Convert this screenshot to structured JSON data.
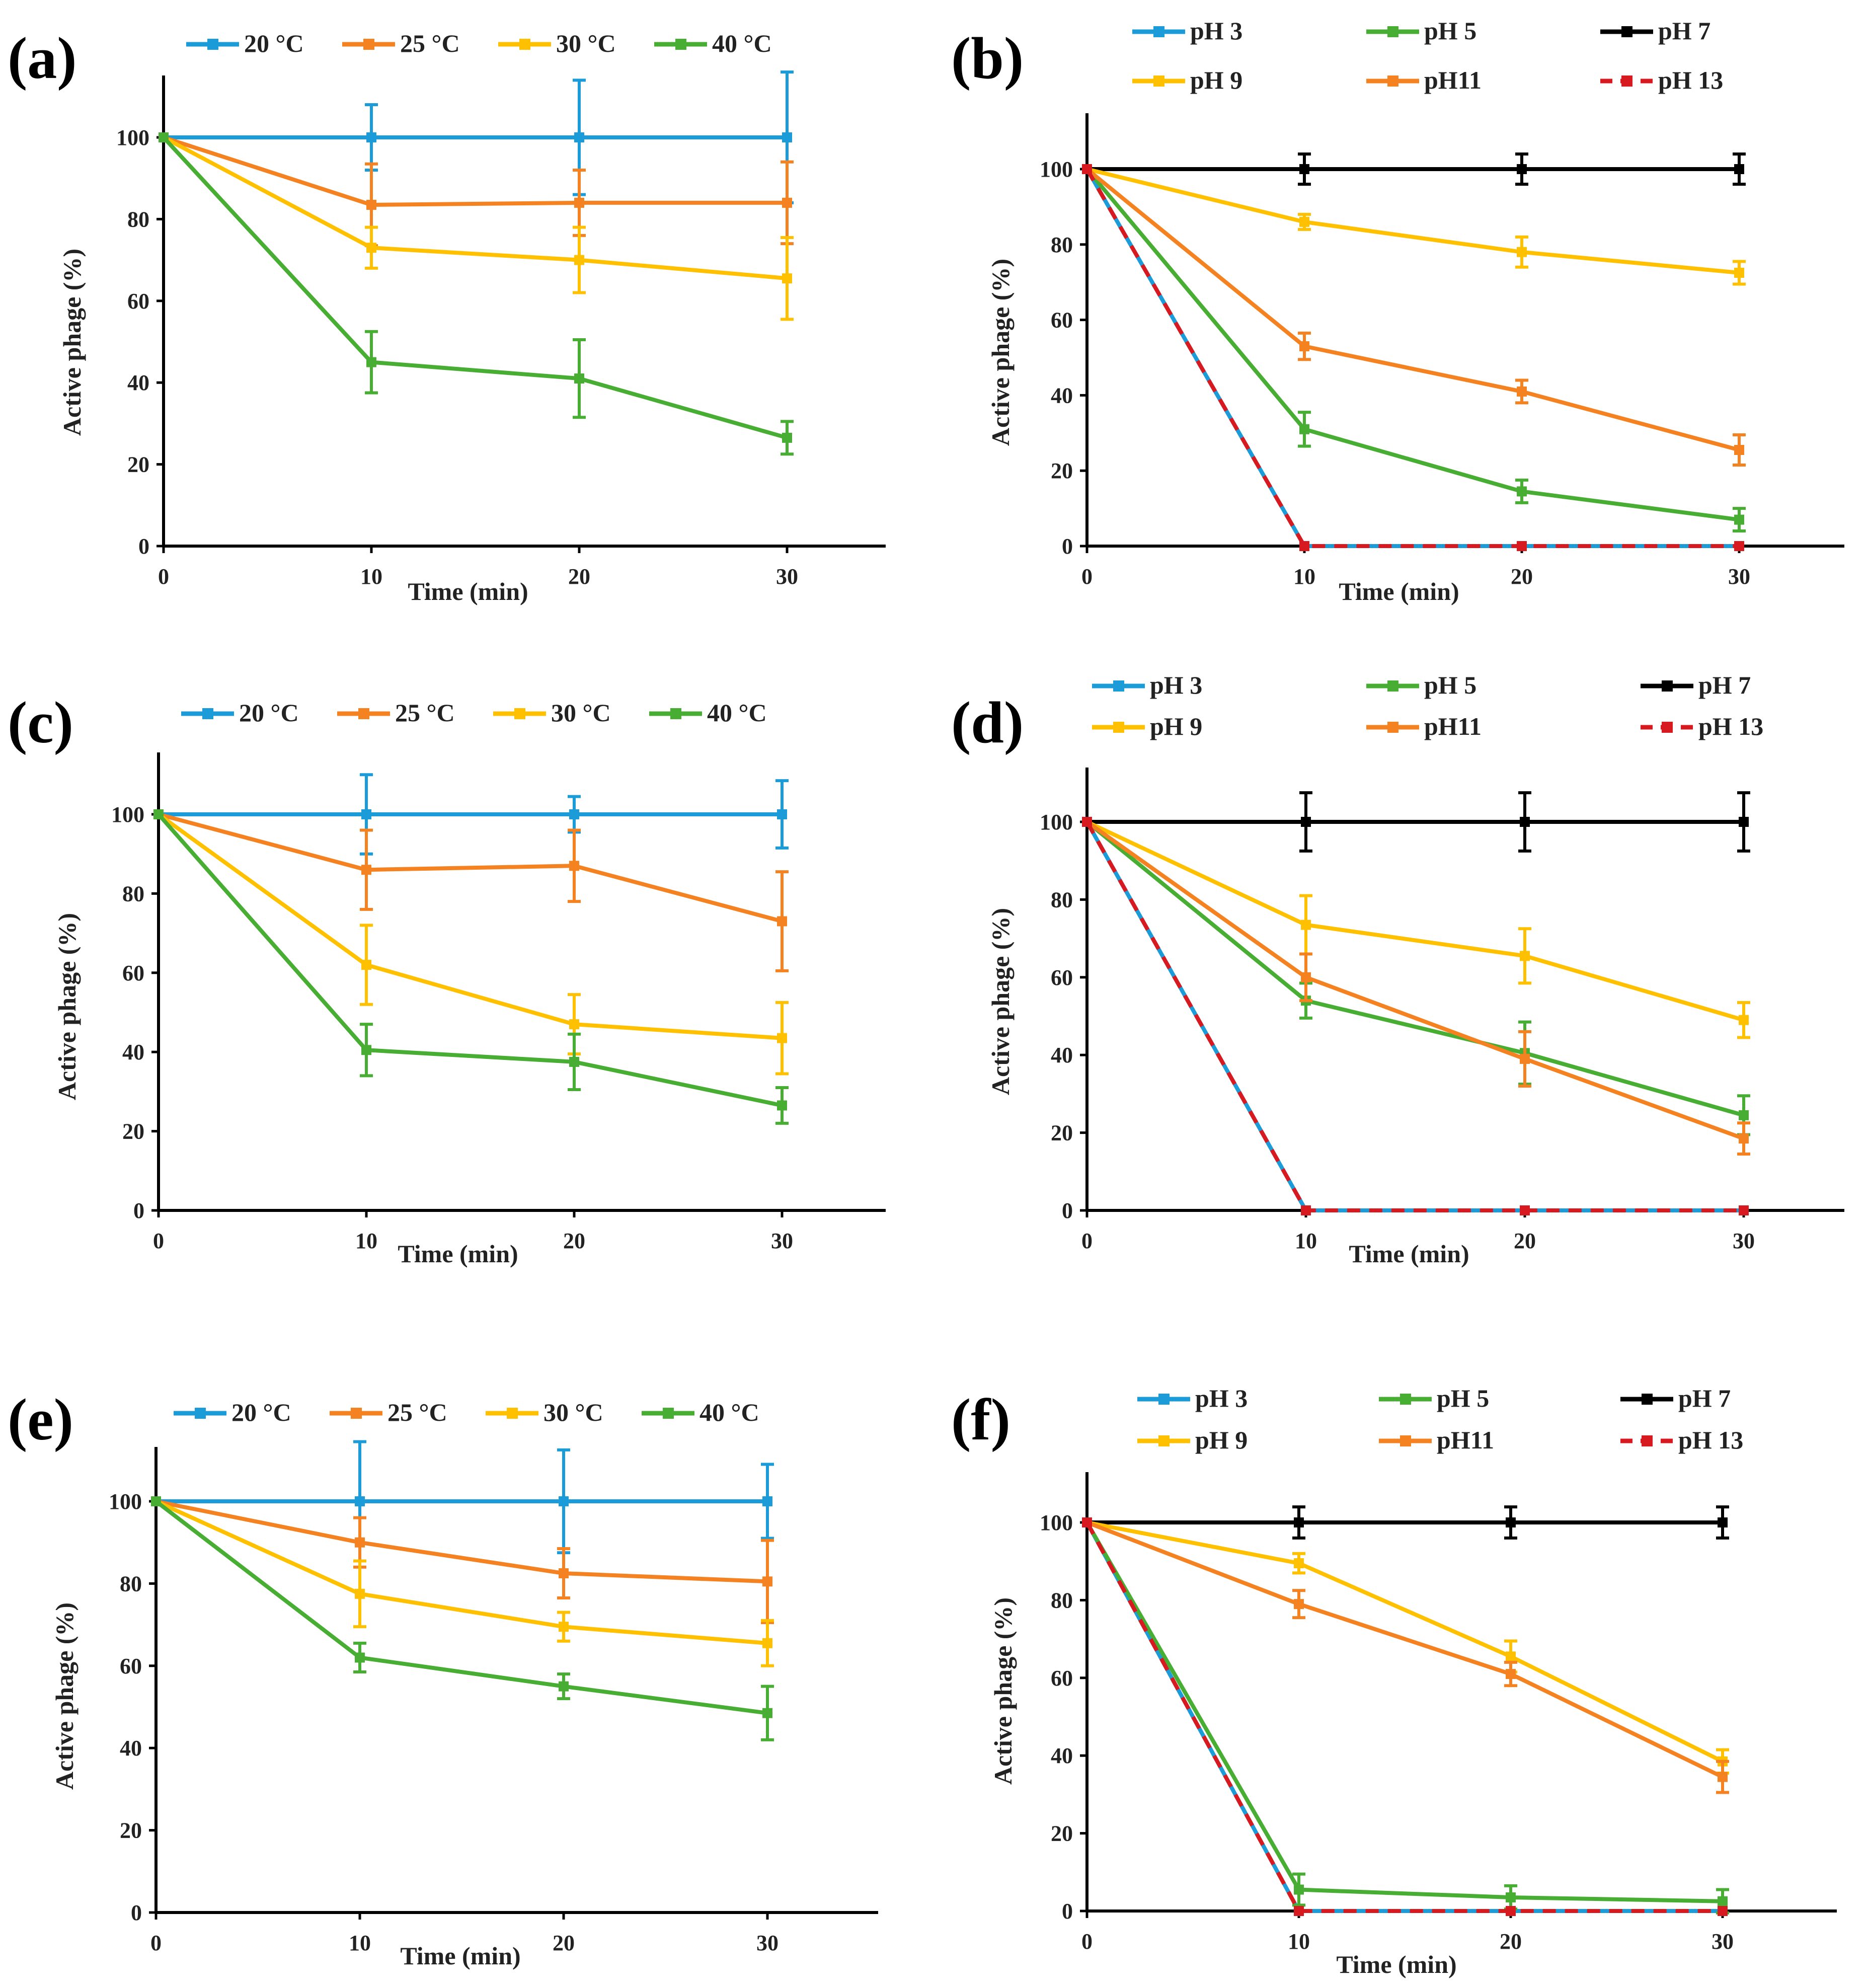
{
  "colors": {
    "blue": "#1B9BD8",
    "orange": "#F58220",
    "yellow": "#FFC000",
    "green": "#48AE33",
    "black": "#000000",
    "red": "#D71920"
  },
  "chart_data": [
    {
      "panel": "(a)",
      "type": "line",
      "x": [
        0,
        10,
        20,
        30
      ],
      "xticks": [
        "0",
        "10",
        "20",
        "30"
      ],
      "yticks": [
        "0",
        "20",
        "40",
        "60",
        "80",
        "100"
      ],
      "xlabel": "Time (min)",
      "ylabel": "Active phage (%)",
      "xlim": [
        0,
        35
      ],
      "ylim": [
        0,
        110
      ],
      "series": [
        {
          "name": "20 °C",
          "color": "blue",
          "values": [
            100,
            100,
            100,
            100
          ],
          "errors": [
            0,
            8,
            14,
            16
          ]
        },
        {
          "name": "25 °C",
          "color": "orange",
          "values": [
            100,
            83.5,
            84,
            84
          ],
          "errors": [
            0,
            10,
            8,
            10
          ]
        },
        {
          "name": "30 °C",
          "color": "yellow",
          "values": [
            100,
            73,
            70,
            65.5
          ],
          "errors": [
            0,
            5,
            8,
            10
          ]
        },
        {
          "name": "40 °C",
          "color": "green",
          "values": [
            100,
            45,
            41,
            26.5
          ],
          "errors": [
            0,
            7.5,
            9.5,
            4
          ]
        }
      ]
    },
    {
      "panel": "(b)",
      "type": "line",
      "x": [
        0,
        10,
        20,
        30
      ],
      "xticks": [
        "0",
        "10",
        "20",
        "30"
      ],
      "yticks": [
        "0",
        "20",
        "40",
        "60",
        "80",
        "100"
      ],
      "xlabel": "Time (min)",
      "ylabel": "Active phage (%)",
      "xlim": [
        0,
        35
      ],
      "ylim": [
        0,
        115
      ],
      "series": [
        {
          "name": "pH 3",
          "color": "blue",
          "values": [
            100,
            0,
            0,
            0
          ],
          "errors": [
            0,
            0,
            0,
            0
          ]
        },
        {
          "name": "pH 5",
          "color": "green",
          "values": [
            100,
            31,
            14.5,
            7
          ],
          "errors": [
            0,
            4.5,
            3,
            3
          ]
        },
        {
          "name": "pH 7",
          "color": "black",
          "values": [
            100,
            100,
            100,
            100
          ],
          "errors": [
            0,
            4,
            4,
            4
          ]
        },
        {
          "name": "pH 9",
          "color": "yellow",
          "values": [
            100,
            86,
            78,
            72.5
          ],
          "errors": [
            0,
            2,
            4,
            3
          ]
        },
        {
          "name": "pH11",
          "color": "orange",
          "values": [
            100,
            53,
            41,
            25.5
          ],
          "errors": [
            0,
            3.5,
            3,
            4
          ]
        },
        {
          "name": "pH 13",
          "color": "red",
          "values": [
            100,
            0,
            0,
            0
          ],
          "errors": [
            0,
            0,
            0,
            0
          ],
          "dashed": true
        }
      ]
    },
    {
      "panel": "(c)",
      "type": "line",
      "x": [
        0,
        10,
        20,
        30
      ],
      "xticks": [
        "0",
        "10",
        "20",
        "30"
      ],
      "yticks": [
        "0",
        "20",
        "40",
        "60",
        "80",
        "100"
      ],
      "xlabel": "Time (min)",
      "ylabel": "Active phage (%)",
      "xlim": [
        0,
        35
      ],
      "ylim": [
        0,
        113
      ],
      "series": [
        {
          "name": "20 °C",
          "color": "blue",
          "values": [
            100,
            100,
            100,
            100
          ],
          "errors": [
            0,
            10,
            4.5,
            8.5
          ]
        },
        {
          "name": "25 °C",
          "color": "orange",
          "values": [
            100,
            86,
            87,
            73
          ],
          "errors": [
            0,
            10,
            9,
            12.5
          ]
        },
        {
          "name": "30 °C",
          "color": "yellow",
          "values": [
            100,
            62,
            47,
            43.5
          ],
          "errors": [
            0,
            10,
            7.5,
            9
          ]
        },
        {
          "name": "40 °C",
          "color": "green",
          "values": [
            100,
            40.5,
            37.5,
            26.5
          ],
          "errors": [
            0,
            6.5,
            7,
            4.5
          ]
        }
      ]
    },
    {
      "panel": "(d)",
      "type": "line",
      "x": [
        0,
        10,
        20,
        30
      ],
      "xticks": [
        "0",
        "10",
        "20",
        "30"
      ],
      "yticks": [
        "0",
        "20",
        "40",
        "60",
        "80",
        "100"
      ],
      "xlabel": "Time (min)",
      "ylabel": "Active phage (%)",
      "xlim": [
        0,
        35
      ],
      "ylim": [
        0,
        114
      ],
      "series": [
        {
          "name": "pH 3",
          "color": "blue",
          "values": [
            100,
            0,
            0,
            0
          ],
          "errors": [
            0,
            0,
            0,
            0
          ]
        },
        {
          "name": "pH 5",
          "color": "green",
          "values": [
            100,
            54,
            40.5,
            24.5
          ],
          "errors": [
            0,
            4.5,
            8,
            5
          ]
        },
        {
          "name": "pH 7",
          "color": "black",
          "values": [
            100,
            100,
            100,
            100
          ],
          "errors": [
            0,
            7.5,
            7.5,
            7.5
          ]
        },
        {
          "name": "pH 9",
          "color": "yellow",
          "values": [
            100,
            73.5,
            65.5,
            49
          ],
          "errors": [
            0,
            7.5,
            7,
            4.5
          ]
        },
        {
          "name": "pH11",
          "color": "orange",
          "values": [
            100,
            60,
            39,
            18.5
          ],
          "errors": [
            0,
            6,
            7,
            4
          ]
        },
        {
          "name": "pH 13",
          "color": "red",
          "values": [
            100,
            0,
            0,
            0
          ],
          "errors": [
            0,
            0,
            0,
            0
          ],
          "dashed": true
        }
      ]
    },
    {
      "panel": "(e)",
      "type": "line",
      "x": [
        0,
        10,
        20,
        30
      ],
      "xticks": [
        "0",
        "10",
        "20",
        "30"
      ],
      "yticks": [
        "0",
        "20",
        "40",
        "60",
        "80",
        "100"
      ],
      "xlabel": "Time (min)",
      "ylabel": "Active phage (%)",
      "xlim": [
        0,
        35
      ],
      "ylim": [
        0,
        115
      ],
      "series": [
        {
          "name": "20 °C",
          "color": "blue",
          "values": [
            100,
            100,
            100,
            100
          ],
          "errors": [
            0,
            14.5,
            12.5,
            9
          ]
        },
        {
          "name": "25 °C",
          "color": "orange",
          "values": [
            100,
            90,
            82.5,
            80.5
          ],
          "errors": [
            0,
            6,
            6,
            10
          ]
        },
        {
          "name": "30 °C",
          "color": "yellow",
          "values": [
            100,
            77.5,
            69.5,
            65.5
          ],
          "errors": [
            0,
            8,
            3.5,
            5.5
          ]
        },
        {
          "name": "40 °C",
          "color": "green",
          "values": [
            100,
            62,
            55,
            48.5
          ],
          "errors": [
            0,
            3.5,
            3,
            6.5
          ]
        }
      ]
    },
    {
      "panel": "(f)",
      "type": "line",
      "x": [
        0,
        10,
        20,
        30
      ],
      "xticks": [
        "0",
        "10",
        "20",
        "30"
      ],
      "yticks": [
        "0",
        "20",
        "40",
        "60",
        "80",
        "100"
      ],
      "xlabel": "Time (min)",
      "ylabel": "Active phage (%)",
      "xlim": [
        0,
        35
      ],
      "ylim": [
        0,
        113
      ],
      "series": [
        {
          "name": "pH 3",
          "color": "blue",
          "values": [
            100,
            0,
            0,
            0
          ],
          "errors": [
            0,
            0,
            0,
            0
          ]
        },
        {
          "name": "pH 5",
          "color": "green",
          "values": [
            100,
            5.5,
            3.5,
            2.5
          ],
          "errors": [
            0,
            4,
            3,
            3
          ]
        },
        {
          "name": "pH 7",
          "color": "black",
          "values": [
            100,
            100,
            100,
            100
          ],
          "errors": [
            0,
            4,
            4,
            4
          ]
        },
        {
          "name": "pH 9",
          "color": "yellow",
          "values": [
            100,
            89.5,
            65.5,
            38.5
          ],
          "errors": [
            0,
            2.5,
            4,
            3
          ]
        },
        {
          "name": "pH11",
          "color": "orange",
          "values": [
            100,
            79,
            61,
            34.5
          ],
          "errors": [
            0,
            3.5,
            3,
            4
          ]
        },
        {
          "name": "pH 13",
          "color": "red",
          "values": [
            100,
            0,
            0,
            0
          ],
          "errors": [
            0,
            0,
            0,
            0
          ],
          "dashed": true
        }
      ]
    }
  ]
}
